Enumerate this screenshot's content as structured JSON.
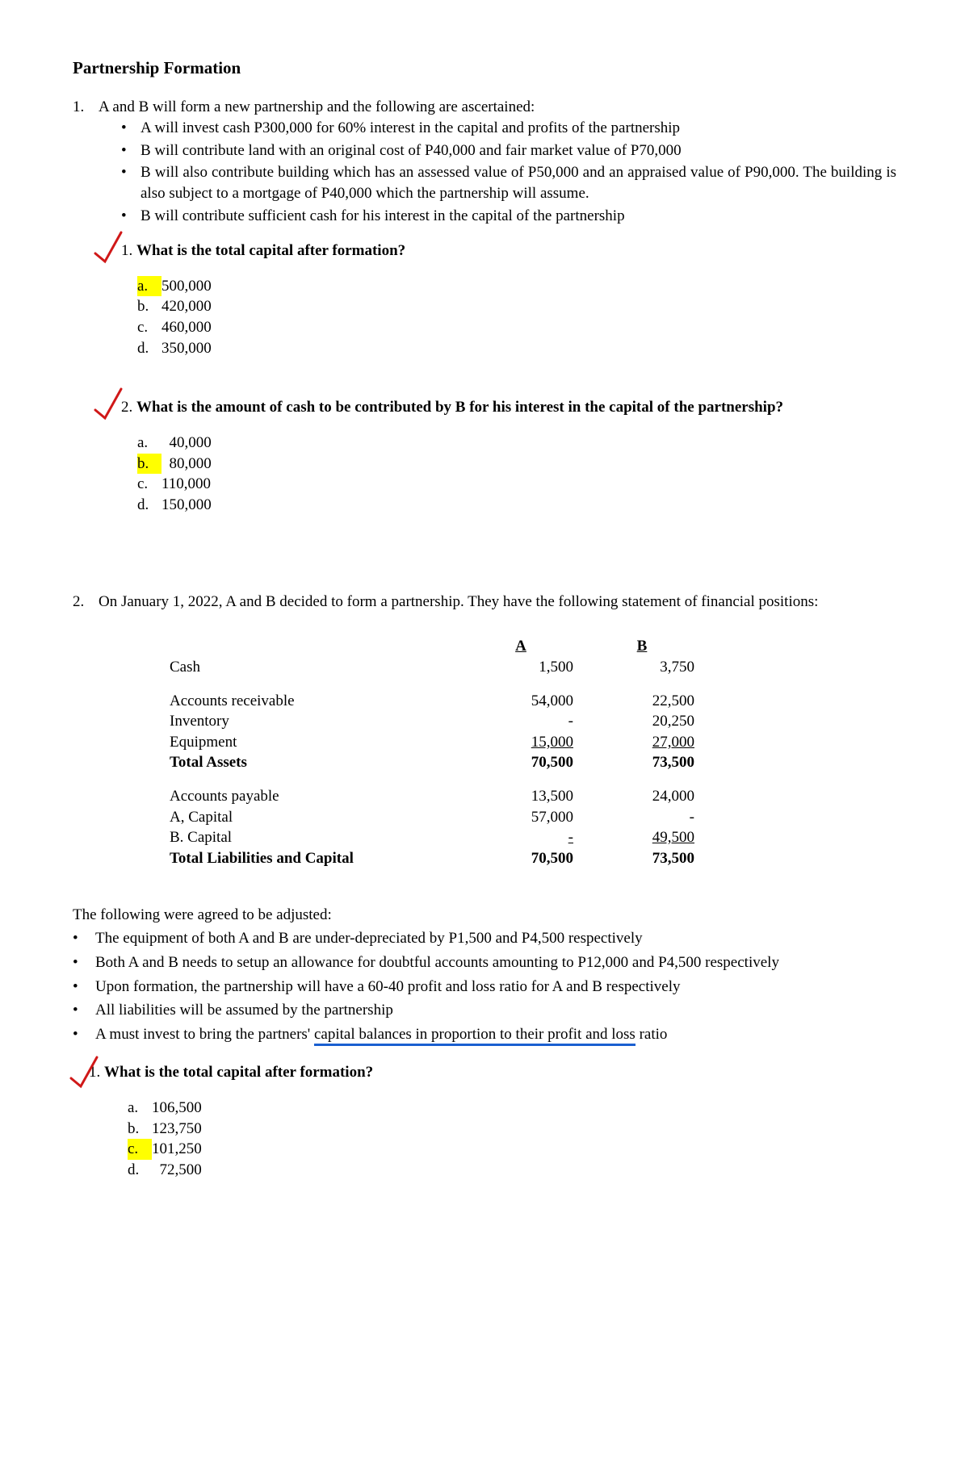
{
  "title": "Partnership Formation",
  "p1": {
    "num": "1.",
    "intro": "A and B will form a new partnership and the following are ascertained:",
    "bullets": [
      "A will invest cash P300,000 for 60% interest in the capital and profits of the partnership",
      "B will contribute land with an original cost of P40,000 and fair market value of P70,000",
      "B will also contribute building which has an assessed value of P50,000 and an appraised value of P90,000. The building is also subject to a mortgage of P40,000 which the partnership will assume.",
      "B will contribute sufficient cash for his interest in the capital of the partnership"
    ],
    "q1": {
      "num": "1.",
      "text": "What is the total capital after formation?",
      "opts": [
        {
          "l": "a.",
          "v": "500,000",
          "hl": true
        },
        {
          "l": "b.",
          "v": "420,000",
          "hl": false
        },
        {
          "l": "c.",
          "v": "460,000",
          "hl": false
        },
        {
          "l": "d.",
          "v": "350,000",
          "hl": false
        }
      ]
    },
    "q2": {
      "num": "2.",
      "text": "What is the amount of cash to be contributed by B for his interest in the capital of the partnership?",
      "opts": [
        {
          "l": "a.",
          "v": "40,000",
          "hl": false
        },
        {
          "l": "b.",
          "v": "80,000",
          "hl": true
        },
        {
          "l": "c.",
          "v": "110,000",
          "hl": false
        },
        {
          "l": "d.",
          "v": "150,000",
          "hl": false
        }
      ]
    }
  },
  "p2": {
    "num": "2.",
    "intro": "On January 1, 2022, A and B decided to form a partnership. They have the following statement of financial positions:",
    "table": {
      "headA": "A",
      "headB": "B",
      "rows": [
        {
          "label": "Cash",
          "a": "1,500",
          "b": "3,750",
          "bold": false
        },
        {
          "gap": true
        },
        {
          "label": "Accounts receivable",
          "a": "54,000",
          "b": "22,500",
          "bold": false
        },
        {
          "label": "Inventory",
          "a": "-",
          "b": "20,250",
          "bold": false
        },
        {
          "label": "Equipment",
          "a": "15,000",
          "b": "27,000",
          "bold": false,
          "under": true
        },
        {
          "label": "Total Assets",
          "a": "70,500",
          "b": "73,500",
          "bold": true
        },
        {
          "gap": true
        },
        {
          "label": "Accounts payable",
          "a": "13,500",
          "b": "24,000",
          "bold": false
        },
        {
          "label": "A, Capital",
          "a": "57,000",
          "b": "-",
          "bold": false
        },
        {
          "label": "B. Capital",
          "a": "-",
          "b": "49,500",
          "bold": false,
          "under": true
        },
        {
          "label": "Total Liabilities and Capital",
          "a": "70,500",
          "b": "73,500",
          "bold": true
        }
      ]
    },
    "adj_intro": "The following were agreed to be adjusted:",
    "adjustments": [
      "The equipment of both A and B are under-depreciated by P1,500 and P4,500 respectively",
      "Both A and B needs to setup an allowance for doubtful accounts amounting to P12,000 and P4,500 respectively",
      "Upon formation, the partnership will have a 60-40 profit and loss ratio for A and B respectively",
      "All liabilities will be assumed by the partnership"
    ],
    "adj_last_pre": "A must invest to bring the partners' ",
    "adj_last_under": "capital balances in proportion to their profit and loss",
    "adj_last_post": " ratio",
    "q1": {
      "num": "1.",
      "text": "What is the total capital after formation?",
      "opts": [
        {
          "l": "a.",
          "v": "106,500",
          "hl": false
        },
        {
          "l": "b.",
          "v": "123,750",
          "hl": false
        },
        {
          "l": "c.",
          "v": "101,250",
          "hl": true
        },
        {
          "l": "d.",
          "v": "72,500",
          "hl": false
        }
      ]
    }
  },
  "colors": {
    "highlight": "#ffff00",
    "checkmark": "#d01818",
    "underline_blue": "#1a5fd0",
    "text": "#000000",
    "background": "#ffffff"
  }
}
